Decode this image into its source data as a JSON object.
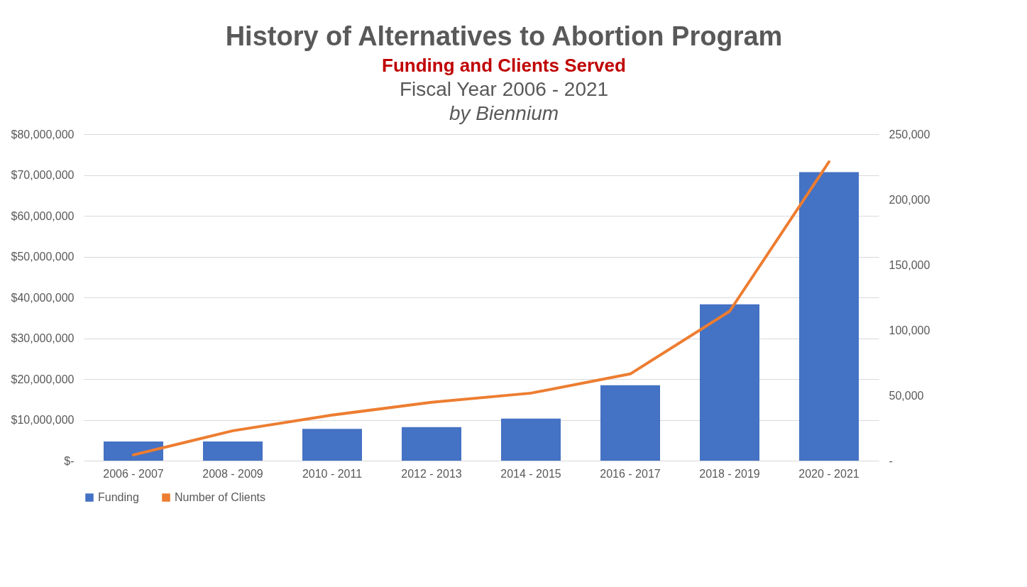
{
  "chart_data": {
    "type": "bar",
    "title": "History of Alternatives to Abortion Program",
    "subtitle": "Funding and Clients Served",
    "annotations": [
      "Fiscal Year 2006 - 2021",
      "by Biennium"
    ],
    "categories": [
      "2006 - 2007",
      "2008 - 2009",
      "2010 - 2011",
      "2012 - 2013",
      "2014 - 2015",
      "2016 - 2017",
      "2018 - 2019",
      "2020 - 2021"
    ],
    "series": [
      {
        "name": "Funding",
        "color": "#4472c4",
        "values": [
          4700000,
          4700000,
          7800000,
          8200000,
          10300000,
          18500000,
          38300000,
          70700000
        ]
      },
      {
        "name": "Number of Clients",
        "type": "line",
        "axis": "y2",
        "color": "#ed7d31",
        "values": [
          4400,
          22900,
          34900,
          44700,
          51700,
          66400,
          114400,
          228800
        ]
      }
    ],
    "ylim": [
      0,
      80000000
    ],
    "yticks": [
      {
        "value": 0,
        "label": "$-"
      },
      {
        "value": 10000000,
        "label": "$10,000,000"
      },
      {
        "value": 20000000,
        "label": "$20,000,000"
      },
      {
        "value": 30000000,
        "label": "$30,000,000"
      },
      {
        "value": 40000000,
        "label": "$40,000,000"
      },
      {
        "value": 50000000,
        "label": "$50,000,000"
      },
      {
        "value": 60000000,
        "label": "$60,000,000"
      },
      {
        "value": 70000000,
        "label": "$70,000,000"
      },
      {
        "value": 80000000,
        "label": "$80,000,000"
      }
    ],
    "y2lim": [
      0,
      250000
    ],
    "y2ticks": [
      {
        "value": 0,
        "label": "-"
      },
      {
        "value": 50000,
        "label": "50,000"
      },
      {
        "value": 100000,
        "label": "100,000"
      },
      {
        "value": 150000,
        "label": "150,000"
      },
      {
        "value": 200000,
        "label": "200,000"
      },
      {
        "value": 250000,
        "label": "250,000"
      }
    ],
    "grid": "y",
    "legend": "bottom",
    "marker": "none",
    "line_style": "solid"
  }
}
